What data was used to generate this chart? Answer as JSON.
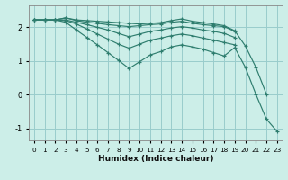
{
  "xlabel": "Humidex (Indice chaleur)",
  "bg_color": "#cceee8",
  "grid_color": "#99cccc",
  "line_color": "#2e7d6e",
  "xlim": [
    -0.5,
    23.5
  ],
  "ylim": [
    -1.35,
    2.65
  ],
  "yticks": [
    -1,
    0,
    1,
    2
  ],
  "xticks": [
    0,
    1,
    2,
    3,
    4,
    5,
    6,
    7,
    8,
    9,
    10,
    11,
    12,
    13,
    14,
    15,
    16,
    17,
    18,
    19,
    20,
    21,
    22,
    23
  ],
  "series": [
    [
      2.22,
      2.22,
      2.22,
      2.28,
      2.22,
      2.2,
      2.18,
      2.16,
      2.14,
      2.12,
      2.1,
      2.12,
      2.14,
      2.2,
      2.25,
      2.18,
      2.14,
      2.1,
      2.05,
      1.9,
      1.45,
      0.82,
      0.02,
      null
    ],
    [
      2.22,
      2.22,
      2.22,
      2.28,
      2.2,
      2.15,
      2.12,
      2.08,
      2.05,
      2.02,
      2.05,
      2.08,
      2.1,
      2.15,
      2.18,
      2.12,
      2.08,
      2.05,
      2.02,
      1.88,
      null,
      null,
      null,
      null
    ],
    [
      2.22,
      2.22,
      2.22,
      2.22,
      2.15,
      2.08,
      2.0,
      1.92,
      1.82,
      1.72,
      1.8,
      1.88,
      1.92,
      1.98,
      2.02,
      1.98,
      1.92,
      1.88,
      1.82,
      1.7,
      null,
      null,
      null,
      null
    ],
    [
      2.22,
      2.22,
      2.22,
      2.2,
      2.1,
      1.95,
      1.8,
      1.65,
      1.5,
      1.38,
      1.5,
      1.62,
      1.68,
      1.75,
      1.8,
      1.75,
      1.68,
      1.62,
      1.55,
      1.48,
      null,
      null,
      null,
      null
    ],
    [
      2.22,
      2.22,
      2.22,
      2.15,
      1.92,
      1.7,
      1.48,
      1.25,
      1.02,
      0.78,
      0.98,
      1.18,
      1.28,
      1.42,
      1.48,
      1.42,
      1.35,
      1.25,
      1.15,
      1.4,
      0.82,
      0.02,
      -0.72,
      -1.08
    ]
  ]
}
